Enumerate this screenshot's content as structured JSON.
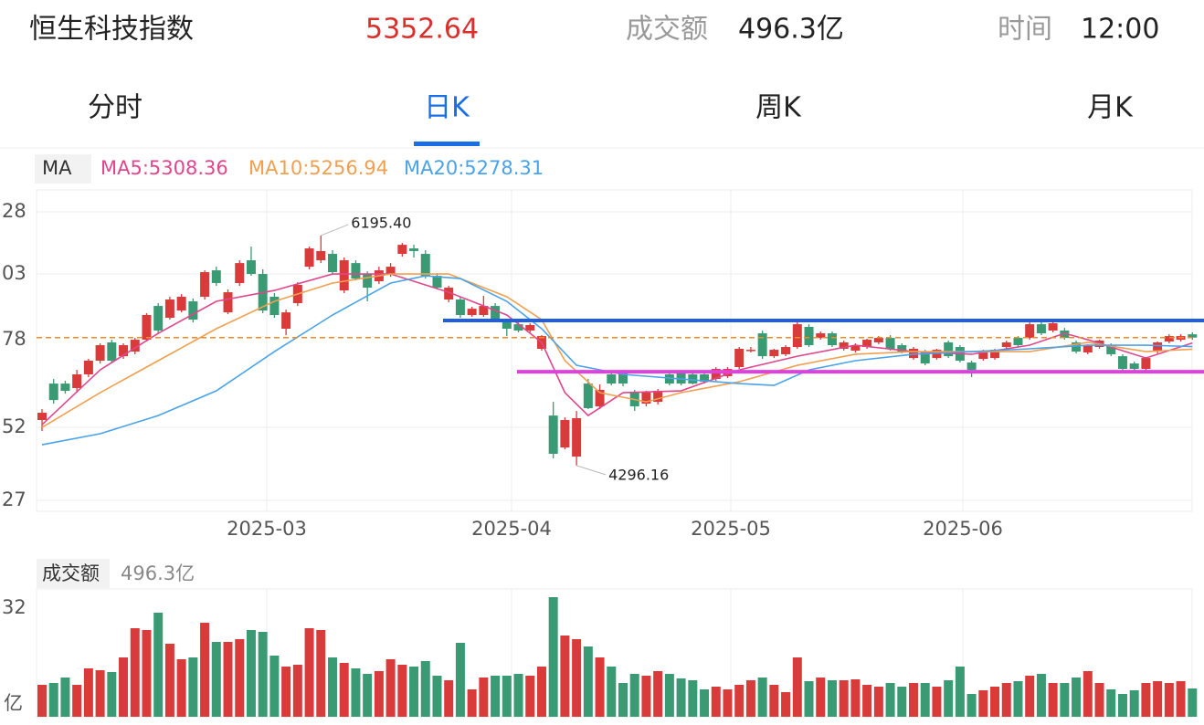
{
  "header": {
    "title": "恒生科技指数",
    "price": "5352.64",
    "turnover_label": "成交额",
    "turnover": "496.3亿",
    "time_label": "时间",
    "time": "12:00"
  },
  "tabs": [
    "分时",
    "日K",
    "周K",
    "月K"
  ],
  "legend": {
    "label": "MA",
    "items": [
      "MA5:5308.36",
      "MA10:5256.94",
      "MA20:5278.31"
    ]
  },
  "price_axis_labels": [
    "28",
    "03",
    "78",
    "52",
    "27"
  ],
  "date_labels": [
    "2025-03",
    "2025-04",
    "2025-05",
    "2025-06"
  ],
  "volume_header": {
    "label": "成交额",
    "value": "496.3亿"
  },
  "volume_axis_labels": [
    "32",
    "亿"
  ],
  "chart_data": {
    "type": "candlestick",
    "ylim": [
      3918,
      6572
    ],
    "vlim": [
      0,
      2160
    ],
    "up_color": "#d93a3a",
    "down_color": "#3a9a74",
    "candles": [
      [
        4672,
        4762,
        4581,
        4732
      ],
      [
        4973,
        5011,
        4807,
        4837
      ],
      [
        4973,
        4996,
        4890,
        4913
      ],
      [
        4936,
        5086,
        4898,
        5049
      ],
      [
        5049,
        5177,
        5026,
        5162
      ],
      [
        5162,
        5305,
        5139,
        5290
      ],
      [
        5313,
        5335,
        5139,
        5162
      ],
      [
        5199,
        5305,
        5177,
        5290
      ],
      [
        5237,
        5350,
        5215,
        5335
      ],
      [
        5335,
        5554,
        5320,
        5539
      ],
      [
        5614,
        5637,
        5388,
        5411
      ],
      [
        5516,
        5690,
        5501,
        5667
      ],
      [
        5576,
        5712,
        5561,
        5690
      ],
      [
        5652,
        5675,
        5478,
        5501
      ],
      [
        5690,
        5908,
        5667,
        5893
      ],
      [
        5908,
        5938,
        5780,
        5803
      ],
      [
        5561,
        5750,
        5546,
        5727
      ],
      [
        5803,
        5991,
        5780,
        5968
      ],
      [
        5991,
        6104,
        5863,
        5878
      ],
      [
        5878,
        5916,
        5554,
        5576
      ],
      [
        5690,
        5720,
        5516,
        5539
      ],
      [
        5426,
        5584,
        5373,
        5561
      ],
      [
        5637,
        5810,
        5614,
        5788
      ],
      [
        5938,
        6104,
        5916,
        6089
      ],
      [
        5991,
        6195.4,
        5968,
        6067
      ],
      [
        6044,
        6074,
        5870,
        5893
      ],
      [
        5742,
        6014,
        5720,
        5991
      ],
      [
        5968,
        5991,
        5825,
        5840
      ],
      [
        5878,
        5900,
        5652,
        5765
      ],
      [
        5818,
        5938,
        5795,
        5908
      ],
      [
        5878,
        5968,
        5855,
        5938
      ],
      [
        6044,
        6134,
        6021,
        6119
      ],
      [
        6089,
        6119,
        6014,
        6067
      ],
      [
        6044,
        6074,
        5840,
        5863
      ],
      [
        5863,
        5885,
        5750,
        5765
      ],
      [
        5667,
        5780,
        5644,
        5765
      ],
      [
        5667,
        5690,
        5516,
        5539
      ],
      [
        5539,
        5606,
        5524,
        5591
      ],
      [
        5539,
        5697,
        5524,
        5614
      ],
      [
        5614,
        5637,
        5486,
        5501
      ],
      [
        5486,
        5501,
        5365,
        5426
      ],
      [
        5463,
        5478,
        5396,
        5411
      ],
      [
        5411,
        5471,
        5396,
        5456
      ],
      [
        5260,
        5373,
        5245,
        5365
      ],
      [
        4709,
        4822,
        4355,
        4393
      ],
      [
        4445,
        4694,
        4430,
        4672
      ],
      [
        4370,
        4747,
        4296.16,
        4687
      ],
      [
        4973,
        5011,
        4762,
        4770
      ],
      [
        4785,
        4966,
        4762,
        4921
      ],
      [
        5049,
        5071,
        4958,
        4973
      ],
      [
        5064,
        5086,
        4951,
        4973
      ],
      [
        4898,
        4921,
        4747,
        4785
      ],
      [
        4807,
        4913,
        4785,
        4898
      ],
      [
        4822,
        4928,
        4800,
        4913
      ],
      [
        5049,
        5064,
        4958,
        4973
      ],
      [
        5064,
        5079,
        4958,
        4973
      ],
      [
        5049,
        5064,
        4966,
        4973
      ],
      [
        5049,
        5064,
        4973,
        4988
      ],
      [
        5011,
        5109,
        4996,
        5094
      ],
      [
        5034,
        5109,
        5018,
        5094
      ],
      [
        5109,
        5275,
        5094,
        5260
      ],
      [
        5245,
        5275,
        5230,
        5252
      ],
      [
        5388,
        5411,
        5177,
        5199
      ],
      [
        5199,
        5260,
        5184,
        5252
      ],
      [
        5215,
        5290,
        5200,
        5275
      ],
      [
        5275,
        5486,
        5260,
        5463
      ],
      [
        5441,
        5463,
        5275,
        5290
      ],
      [
        5350,
        5403,
        5335,
        5388
      ],
      [
        5388,
        5403,
        5275,
        5290
      ],
      [
        5260,
        5328,
        5245,
        5313
      ],
      [
        5245,
        5305,
        5230,
        5290
      ],
      [
        5275,
        5343,
        5260,
        5335
      ],
      [
        5313,
        5365,
        5298,
        5350
      ],
      [
        5350,
        5373,
        5245,
        5260
      ],
      [
        5290,
        5305,
        5222,
        5237
      ],
      [
        5184,
        5275,
        5170,
        5260
      ],
      [
        5237,
        5252,
        5124,
        5139
      ],
      [
        5184,
        5260,
        5170,
        5252
      ],
      [
        5313,
        5328,
        5184,
        5199
      ],
      [
        5275,
        5290,
        5147,
        5162
      ],
      [
        5147,
        5162,
        5026,
        5086
      ],
      [
        5177,
        5252,
        5162,
        5237
      ],
      [
        5184,
        5260,
        5170,
        5252
      ],
      [
        5275,
        5328,
        5260,
        5313
      ],
      [
        5350,
        5365,
        5275,
        5290
      ],
      [
        5350,
        5478,
        5335,
        5463
      ],
      [
        5463,
        5486,
        5373,
        5388
      ],
      [
        5411,
        5486,
        5396,
        5471
      ],
      [
        5411,
        5433,
        5335,
        5350
      ],
      [
        5313,
        5328,
        5222,
        5237
      ],
      [
        5230,
        5298,
        5215,
        5290
      ],
      [
        5275,
        5335,
        5260,
        5328
      ],
      [
        5290,
        5305,
        5200,
        5215
      ],
      [
        5199,
        5215,
        5079,
        5094
      ],
      [
        5139,
        5154,
        5079,
        5094
      ],
      [
        5094,
        5192,
        5079,
        5184
      ],
      [
        5237,
        5320,
        5222,
        5313
      ],
      [
        5320,
        5380,
        5305,
        5365
      ],
      [
        5335,
        5380,
        5320,
        5365
      ],
      [
        5380,
        5396,
        5335,
        5352.64
      ]
    ],
    "volumes": [
      560,
      592,
      688,
      560,
      848,
      816,
      784,
      1040,
      1552,
      1520,
      1824,
      1280,
      1008,
      1040,
      1648,
      1312,
      1312,
      1360,
      1520,
      1488,
      1072,
      880,
      912,
      1552,
      1520,
      1040,
      944,
      848,
      752,
      800,
      1008,
      912,
      880,
      976,
      720,
      640,
      1296,
      480,
      688,
      720,
      720,
      752,
      720,
      880,
      2096,
      1424,
      1360,
      1232,
      1040,
      880,
      592,
      752,
      720,
      800,
      752,
      672,
      640,
      480,
      528,
      480,
      560,
      640,
      688,
      560,
      432,
      1040,
      624,
      688,
      640,
      640,
      656,
      560,
      528,
      592,
      528,
      592,
      592,
      528,
      640,
      880,
      400,
      464,
      528,
      592,
      624,
      720,
      752,
      592,
      592,
      688,
      800,
      592,
      480,
      400,
      464,
      592,
      624,
      592,
      624,
      496.3
    ],
    "ma": [
      {
        "color": "#e0468c",
        "x": [
          0,
          5,
          10,
          15,
          20,
          25,
          30,
          35,
          40,
          43,
          45,
          47,
          50,
          55,
          60,
          65,
          70,
          75,
          80,
          85,
          88,
          90,
          95,
          99
        ],
        "values": [
          4634,
          5086,
          5388,
          5652,
          5742,
          5878,
          5878,
          5727,
          5539,
          5313,
          4898,
          4709,
          4898,
          4913,
          5086,
          5199,
          5290,
          5237,
          5215,
          5290,
          5388,
          5335,
          5184,
          5308.36
        ]
      },
      {
        "color": "#f0a050",
        "x": [
          0,
          5,
          10,
          15,
          20,
          25,
          30,
          35,
          40,
          43,
          45,
          48,
          52,
          55,
          60,
          65,
          70,
          75,
          80,
          85,
          90,
          95,
          99
        ],
        "values": [
          4611,
          4898,
          5162,
          5426,
          5652,
          5803,
          5878,
          5878,
          5690,
          5501,
          5162,
          4898,
          4822,
          4898,
          4988,
          5124,
          5215,
          5237,
          5237,
          5237,
          5313,
          5237,
          5256.94
        ]
      },
      {
        "color": "#4aa3e8",
        "x": [
          0,
          5,
          10,
          15,
          20,
          25,
          30,
          33,
          36,
          40,
          43,
          46,
          50,
          55,
          60,
          63,
          66,
          70,
          75,
          80,
          85,
          90,
          95,
          99
        ],
        "values": [
          4468,
          4559,
          4709,
          4913,
          5237,
          5539,
          5803,
          5863,
          5840,
          5652,
          5426,
          5124,
          5049,
          5011,
          4973,
          4958,
          5086,
          5162,
          5215,
          5237,
          5260,
          5290,
          5290,
          5278.31
        ]
      }
    ],
    "high_label": "6195.40",
    "low_label": "4296.16",
    "hlines": [
      {
        "value": 5494,
        "color": "#1f5ee0"
      },
      {
        "value": 5071,
        "color": "#e040e0"
      }
    ],
    "last_line": {
      "value": 5352.64,
      "color": "#f08a24"
    }
  }
}
